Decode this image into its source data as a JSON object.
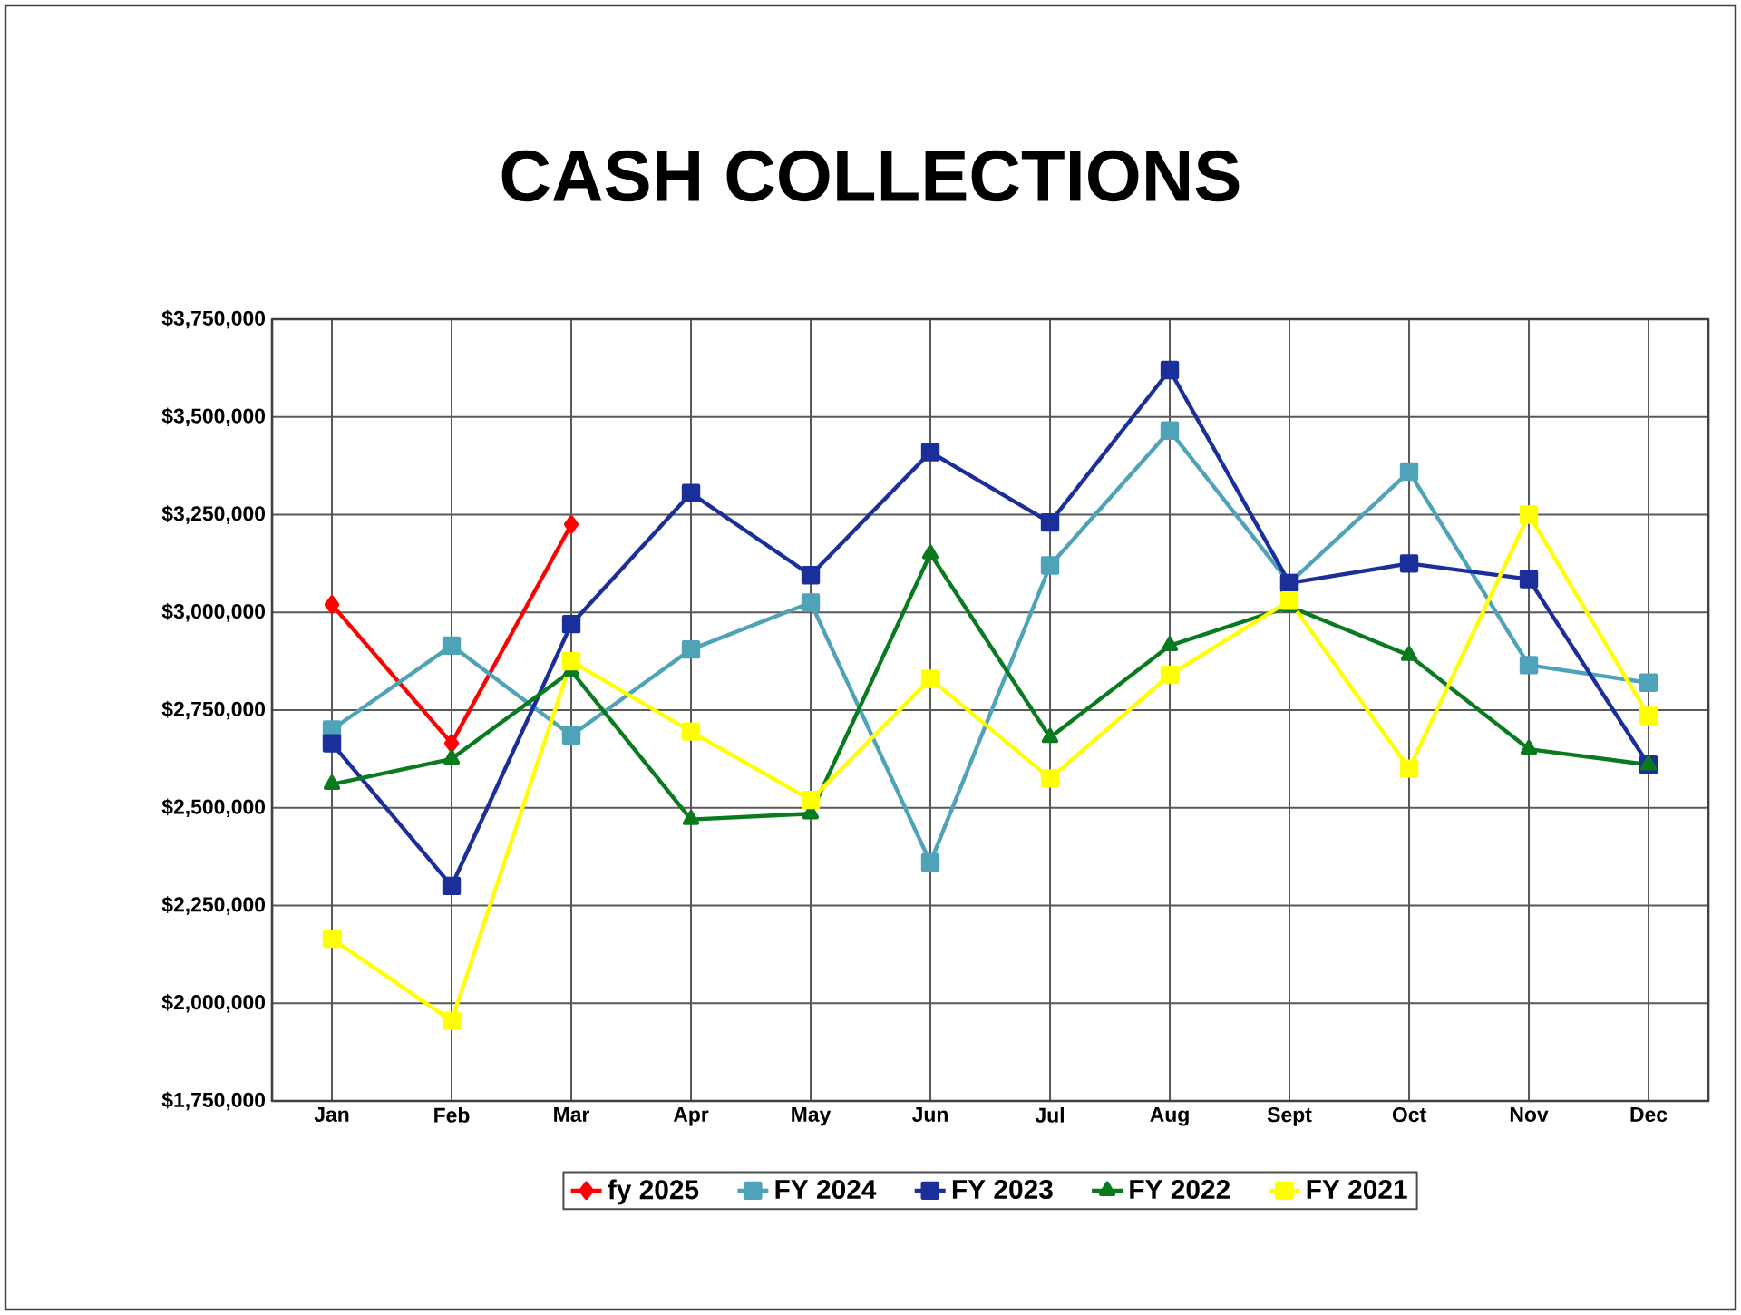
{
  "chart_data": {
    "type": "line",
    "title": "CASH COLLECTIONS",
    "categories": [
      "Jan",
      "Feb",
      "Mar",
      "Apr",
      "May",
      "Jun",
      "Jul",
      "Aug",
      "Sept",
      "Oct",
      "Nov",
      "Dec"
    ],
    "ylim": [
      1750000,
      3750000
    ],
    "yticks": [
      {
        "value": 1750000,
        "label": "$1,750,000"
      },
      {
        "value": 2000000,
        "label": "$2,000,000"
      },
      {
        "value": 2250000,
        "label": "$2,250,000"
      },
      {
        "value": 2500000,
        "label": "$2,500,000"
      },
      {
        "value": 2750000,
        "label": "$2,750,000"
      },
      {
        "value": 3000000,
        "label": "$3,000,000"
      },
      {
        "value": 3250000,
        "label": "$3,250,000"
      },
      {
        "value": 3500000,
        "label": "$3,500,000"
      },
      {
        "value": 3750000,
        "label": "$3,750,000"
      }
    ],
    "grid": true,
    "legend": "bottom",
    "series": [
      {
        "name": "fy 2025",
        "color": "#ff0000",
        "marker": "diamond",
        "values": [
          3020000,
          2665000,
          3225000,
          null,
          null,
          null,
          null,
          null,
          null,
          null,
          null,
          null
        ]
      },
      {
        "name": "FY 2024",
        "color": "#4fa3b8",
        "marker": "square",
        "values": [
          2700000,
          2915000,
          2685000,
          2905000,
          3025000,
          2360000,
          3120000,
          3465000,
          3075000,
          3360000,
          2865000,
          2820000
        ]
      },
      {
        "name": "FY 2023",
        "color": "#1a2f9a",
        "marker": "square",
        "values": [
          2665000,
          2300000,
          2970000,
          3305000,
          3095000,
          3410000,
          3230000,
          3620000,
          3075000,
          3125000,
          3085000,
          2610000
        ]
      },
      {
        "name": "FY 2022",
        "color": "#0a7a1e",
        "marker": "triangle",
        "values": [
          2560000,
          2625000,
          2850000,
          2470000,
          2485000,
          3150000,
          2680000,
          2915000,
          3015000,
          2890000,
          2650000,
          2610000
        ]
      },
      {
        "name": "FY 2021",
        "color": "#ffff00",
        "marker": "square",
        "values": [
          2165000,
          1955000,
          2875000,
          2695000,
          2520000,
          2830000,
          2575000,
          2840000,
          3030000,
          2600000,
          3250000,
          2735000
        ]
      }
    ]
  }
}
